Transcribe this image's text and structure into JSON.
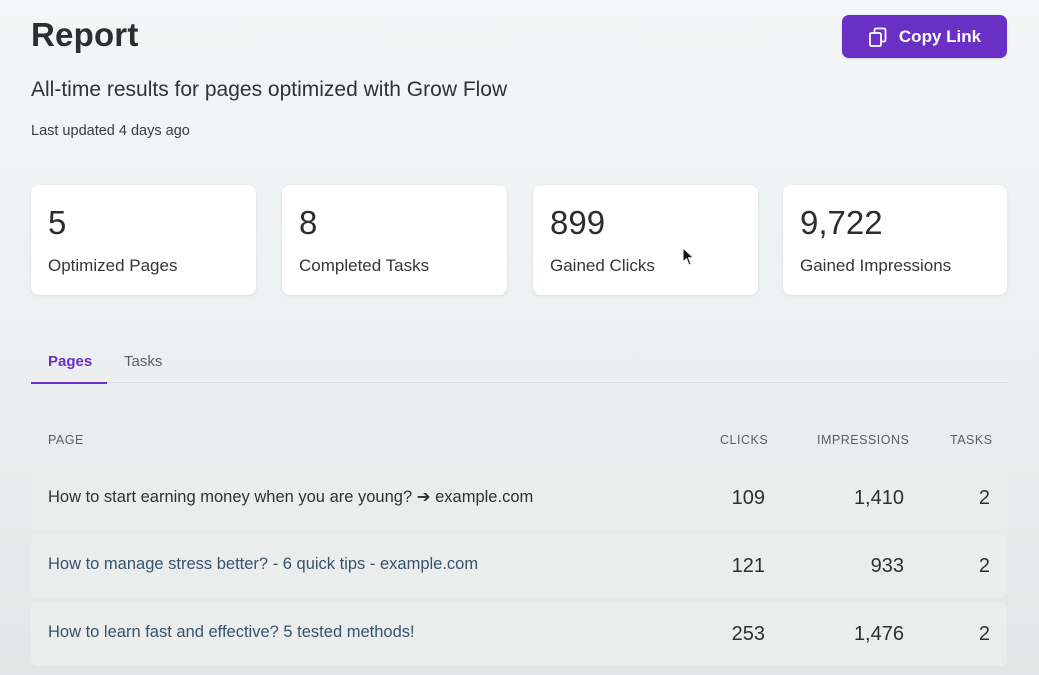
{
  "header": {
    "title": "Report",
    "copy_link_label": "Copy Link",
    "subtitle": "All-time results for pages optimized with Grow Flow",
    "last_updated": "Last updated 4 days ago"
  },
  "stats": [
    {
      "value": "5",
      "label": "Optimized Pages"
    },
    {
      "value": "8",
      "label": "Completed Tasks"
    },
    {
      "value": "899",
      "label": "Gained Clicks"
    },
    {
      "value": "9,722",
      "label": "Gained Impressions"
    }
  ],
  "tabs": [
    {
      "label": "Pages",
      "active": true
    },
    {
      "label": "Tasks",
      "active": false
    }
  ],
  "table": {
    "columns": [
      "PAGE",
      "CLICKS",
      "IMPRESSIONS",
      "TASKS"
    ],
    "rows": [
      {
        "page": "How to start earning money when you are young? ➔ example.com",
        "clicks": "109",
        "impressions": "1,410",
        "tasks": "2"
      },
      {
        "page": "How to manage stress better? - 6 quick tips - example.com",
        "clicks": "121",
        "impressions": "933",
        "tasks": "2"
      },
      {
        "page": "How to learn fast and effective? 5 tested methods!",
        "clicks": "253",
        "impressions": "1,476",
        "tasks": "2"
      }
    ]
  },
  "colors": {
    "accent": "#6a2fc4",
    "link": "#36536d",
    "row_background": "#ebecec"
  },
  "icons": {
    "copy_button": "copy-icon",
    "pointer": "mouse-cursor-icon"
  }
}
